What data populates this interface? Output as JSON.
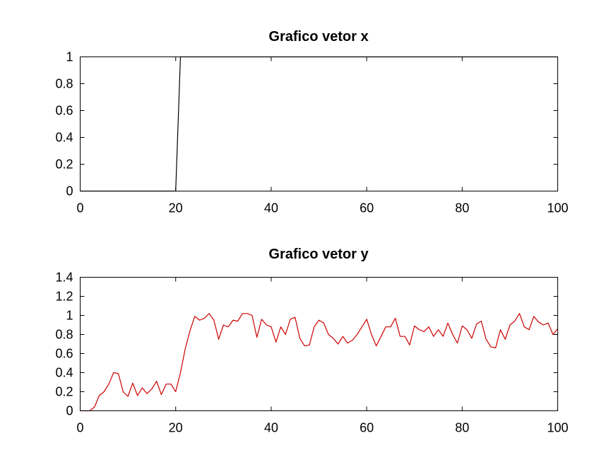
{
  "chart_data": [
    {
      "type": "line",
      "title": "Grafico vetor x",
      "xlabel": "",
      "ylabel": "",
      "xlim": [
        0,
        100
      ],
      "ylim": [
        0,
        1
      ],
      "xticks": [
        0,
        20,
        40,
        60,
        80,
        100
      ],
      "xtick_labels": [
        "0",
        "20",
        "40",
        "60",
        "80",
        "100"
      ],
      "yticks": [
        0,
        0.2,
        0.4,
        0.6,
        0.8,
        1
      ],
      "ytick_labels": [
        "0",
        "0.2",
        "0.4",
        "0.6",
        "0.8",
        "1"
      ],
      "grid": false,
      "series": [
        {
          "name": "x",
          "color": "#000000",
          "x": [
            0,
            20,
            21,
            100
          ],
          "y": [
            0,
            0,
            1,
            1
          ]
        }
      ]
    },
    {
      "type": "line",
      "title": "Grafico vetor y",
      "xlabel": "",
      "ylabel": "",
      "xlim": [
        0,
        100
      ],
      "ylim": [
        0,
        1.4
      ],
      "xticks": [
        0,
        20,
        40,
        60,
        80,
        100
      ],
      "xtick_labels": [
        "0",
        "20",
        "40",
        "60",
        "80",
        "100"
      ],
      "yticks": [
        0,
        0.2,
        0.4,
        0.6,
        0.8,
        1,
        1.2,
        1.4
      ],
      "ytick_labels": [
        "0",
        "0.2",
        "0.4",
        "0.6",
        "0.8",
        "1",
        "1.2",
        "1.4"
      ],
      "grid": false,
      "series": [
        {
          "name": "y",
          "color": "#cc0000",
          "x": [
            0,
            1,
            2,
            3,
            4,
            5,
            6,
            7,
            8,
            9,
            10,
            11,
            12,
            13,
            14,
            15,
            16,
            17,
            18,
            19,
            20,
            21,
            22,
            23,
            24,
            25,
            26,
            27,
            28,
            29,
            30,
            31,
            32,
            33,
            34,
            35,
            36,
            37,
            38,
            39,
            40,
            41,
            42,
            43,
            44,
            45,
            46,
            47,
            48,
            49,
            50,
            51,
            52,
            53,
            54,
            55,
            56,
            57,
            58,
            59,
            60,
            61,
            62,
            63,
            64,
            65,
            66,
            67,
            68,
            69,
            70,
            71,
            72,
            73,
            74,
            75,
            76,
            77,
            78,
            79,
            80,
            81,
            82,
            83,
            84,
            85,
            86,
            87,
            88,
            89,
            90,
            91,
            92,
            93,
            94,
            95,
            96,
            97,
            98,
            99,
            100
          ],
          "y": [
            0,
            0,
            0,
            0.04,
            0.16,
            0.2,
            0.28,
            0.4,
            0.39,
            0.2,
            0.15,
            0.29,
            0.16,
            0.24,
            0.18,
            0.23,
            0.31,
            0.17,
            0.28,
            0.28,
            0.2,
            0.4,
            0.65,
            0.84,
            0.99,
            0.95,
            0.97,
            1.02,
            0.95,
            0.75,
            0.9,
            0.88,
            0.95,
            0.94,
            1.02,
            1.02,
            1.0,
            0.77,
            0.96,
            0.9,
            0.88,
            0.72,
            0.88,
            0.8,
            0.96,
            0.98,
            0.76,
            0.68,
            0.69,
            0.88,
            0.95,
            0.92,
            0.8,
            0.76,
            0.7,
            0.78,
            0.71,
            0.74,
            0.8,
            0.88,
            0.96,
            0.8,
            0.68,
            0.78,
            0.88,
            0.88,
            0.97,
            0.78,
            0.78,
            0.69,
            0.89,
            0.85,
            0.83,
            0.88,
            0.78,
            0.85,
            0.78,
            0.92,
            0.8,
            0.71,
            0.89,
            0.85,
            0.76,
            0.91,
            0.94,
            0.75,
            0.67,
            0.66,
            0.85,
            0.75,
            0.9,
            0.94,
            1.02,
            0.88,
            0.85,
            0.99,
            0.93,
            0.9,
            0.92,
            0.8,
            0.86
          ]
        }
      ]
    }
  ]
}
